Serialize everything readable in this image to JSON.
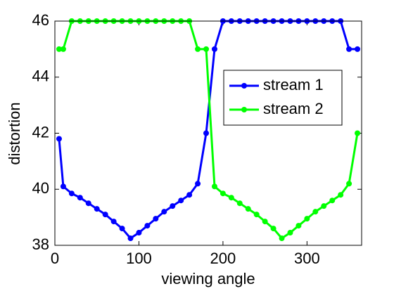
{
  "chart_data": {
    "type": "line",
    "xlabel": "viewing angle",
    "ylabel": "distortion",
    "x": [
      5,
      10,
      20,
      30,
      40,
      50,
      60,
      70,
      80,
      90,
      100,
      110,
      120,
      130,
      140,
      150,
      160,
      170,
      180,
      190,
      200,
      210,
      220,
      230,
      240,
      250,
      260,
      270,
      280,
      290,
      300,
      310,
      320,
      330,
      340,
      350,
      360
    ],
    "series": [
      {
        "name": "stream 1",
        "color": "#0000ff",
        "values": [
          41.8,
          40.1,
          39.85,
          39.7,
          39.5,
          39.3,
          39.1,
          38.85,
          38.6,
          38.25,
          38.45,
          38.7,
          38.95,
          39.2,
          39.4,
          39.6,
          39.8,
          40.2,
          42,
          45,
          46,
          46,
          46,
          46,
          46,
          46,
          46,
          46,
          46,
          46,
          46,
          46,
          46,
          46,
          46,
          45,
          45
        ]
      },
      {
        "name": "stream 2",
        "color": "#00ff00",
        "values": [
          45,
          45,
          46,
          46,
          46,
          46,
          46,
          46,
          46,
          46,
          46,
          46,
          46,
          46,
          46,
          46,
          46,
          45,
          45,
          40.1,
          39.85,
          39.7,
          39.5,
          39.3,
          39.1,
          38.85,
          38.6,
          38.25,
          38.45,
          38.7,
          38.95,
          39.2,
          39.4,
          39.6,
          39.8,
          40.2,
          42
        ]
      }
    ],
    "xlim": [
      0,
      365
    ],
    "xticks": [
      0,
      100,
      200,
      300
    ],
    "ylim": [
      38,
      46
    ],
    "yticks": [
      38,
      40,
      42,
      44,
      46
    ],
    "grid": false,
    "legend": "upper right"
  }
}
